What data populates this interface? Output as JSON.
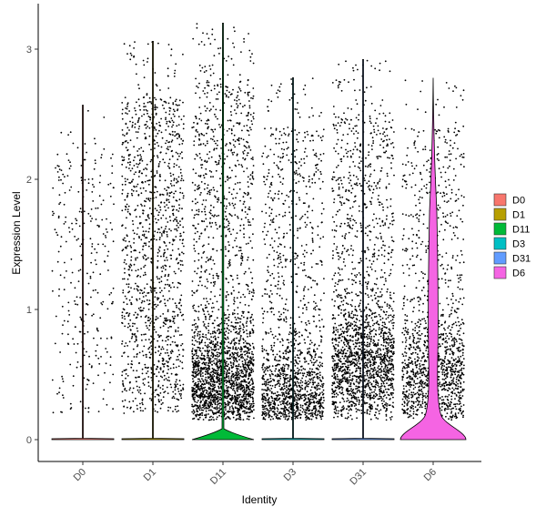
{
  "chart_data": {
    "type": "violin",
    "xlabel": "Identity",
    "ylabel": "Expression Level",
    "ylim": [
      -0.18,
      3.3
    ],
    "yticks": [
      0,
      1,
      2,
      3
    ],
    "categories": [
      "D0",
      "D1",
      "D11",
      "D3",
      "D31",
      "D6"
    ],
    "series": [
      {
        "name": "D0",
        "color": "#F8766D",
        "points_shown": 300,
        "dense_low": 0.0,
        "violin_peak": 0.0,
        "max": 2.57,
        "label_top_spread": 2.55
      },
      {
        "name": "D1",
        "color": "#B79F00",
        "points_shown": 1300,
        "dense_low": 0.0,
        "violin_peak": 0.0,
        "max": 3.06,
        "label_top_spread": 3.05
      },
      {
        "name": "D11",
        "color": "#00BA38",
        "points_shown": 2400,
        "dense_low": 0.45,
        "violin_peak": 0.06,
        "max": 3.2,
        "label_top_spread": 3.2
      },
      {
        "name": "D3",
        "color": "#00BFC4",
        "points_shown": 1500,
        "dense_low": 0.35,
        "violin_peak": 0.0,
        "max": 2.78,
        "label_top_spread": 2.78
      },
      {
        "name": "D31",
        "color": "#619CFF",
        "points_shown": 2000,
        "dense_low": 0.6,
        "violin_peak": 0.0,
        "max": 2.92,
        "label_top_spread": 2.92
      },
      {
        "name": "D6",
        "color": "#F564E3",
        "points_shown": 1400,
        "dense_low": 0.5,
        "violin_peak": 0.2,
        "max": 2.78,
        "label_top_spread": 2.78
      }
    ],
    "legend": {
      "position": "right",
      "entries": [
        "D0",
        "D1",
        "D11",
        "D3",
        "D31",
        "D6"
      ]
    },
    "grid": false
  }
}
